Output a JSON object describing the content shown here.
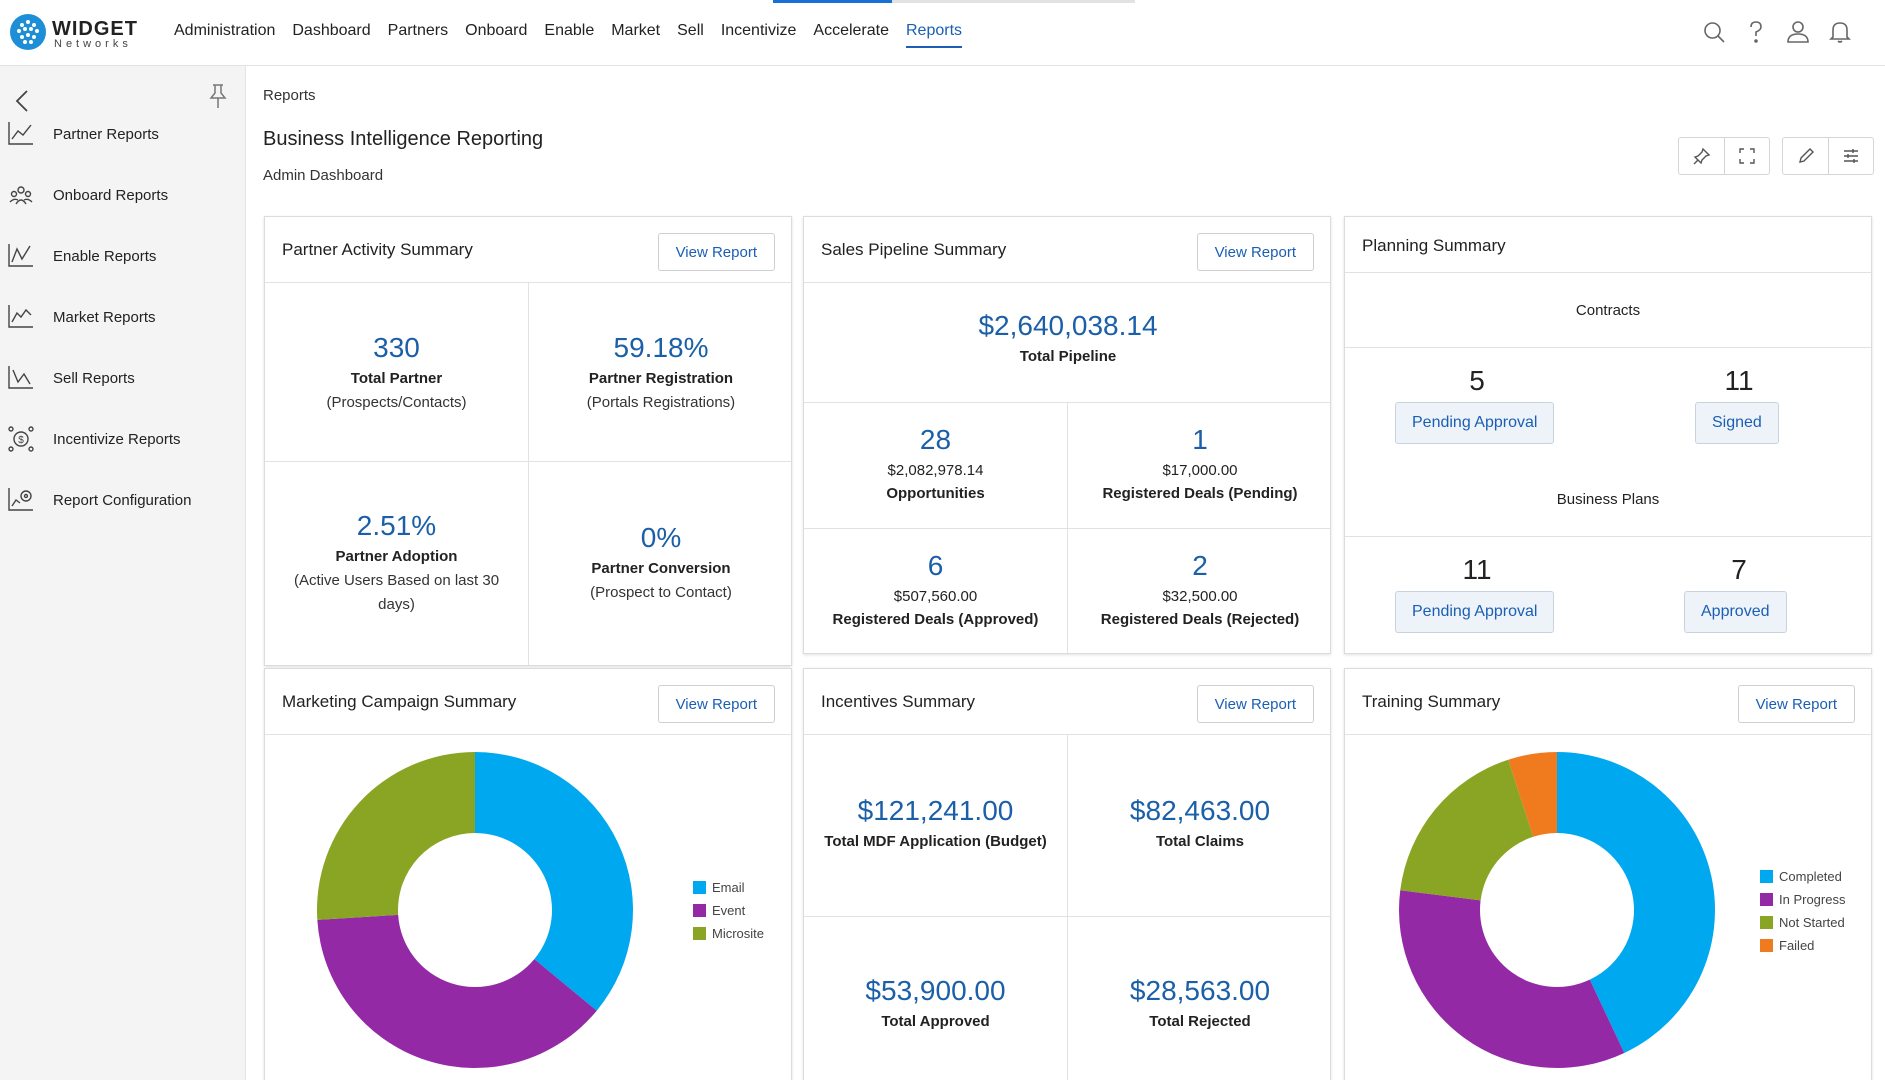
{
  "brand": {
    "name": "WIDGET",
    "sub": "Networks"
  },
  "nav": [
    "Administration",
    "Dashboard",
    "Partners",
    "Onboard",
    "Enable",
    "Market",
    "Sell",
    "Incentivize",
    "Accelerate",
    "Reports"
  ],
  "nav_active": "Reports",
  "top_icons": [
    "search-icon",
    "help-icon",
    "user-icon",
    "bell-icon"
  ],
  "sidebar": {
    "items": [
      {
        "label": "Partner Reports",
        "icon": "chart-line-icon"
      },
      {
        "label": "Onboard Reports",
        "icon": "onboard-icon"
      },
      {
        "label": "Enable Reports",
        "icon": "chart-enable-icon"
      },
      {
        "label": "Market Reports",
        "icon": "chart-market-icon"
      },
      {
        "label": "Sell Reports",
        "icon": "chart-sell-icon"
      },
      {
        "label": "Incentivize Reports",
        "icon": "money-icon"
      },
      {
        "label": "Report Configuration",
        "icon": "chart-config-icon"
      }
    ]
  },
  "breadcrumb": "Reports",
  "page_title": "Business Intelligence Reporting",
  "subtitle": "Admin Dashboard",
  "view_report": "View Report",
  "partner_activity": {
    "title": "Partner Activity Summary",
    "total_partner": {
      "value": "330",
      "label": "Total Partner",
      "sub": "(Prospects/Contacts)"
    },
    "registration": {
      "value": "59.18%",
      "label": "Partner Registration",
      "sub": "(Portals Registrations)"
    },
    "adoption": {
      "value": "2.51%",
      "label": "Partner Adoption",
      "sub": "(Active Users Based on last 30 days)"
    },
    "conversion": {
      "value": "0%",
      "label": "Partner Conversion",
      "sub": "(Prospect to Contact)"
    }
  },
  "sales_pipeline": {
    "title": "Sales Pipeline Summary",
    "total": {
      "value": "$2,640,038.14",
      "label": "Total Pipeline"
    },
    "opportunities": {
      "count": "28",
      "amount": "$2,082,978.14",
      "label": "Opportunities"
    },
    "pending": {
      "count": "1",
      "amount": "$17,000.00",
      "label": "Registered Deals (Pending)"
    },
    "approved": {
      "count": "6",
      "amount": "$507,560.00",
      "label": "Registered Deals (Approved)"
    },
    "rejected": {
      "count": "2",
      "amount": "$32,500.00",
      "label": "Registered Deals (Rejected)"
    }
  },
  "planning": {
    "title": "Planning Summary",
    "contracts_label": "Contracts",
    "contracts_pending": {
      "count": "5",
      "label": "Pending Approval"
    },
    "contracts_signed": {
      "count": "11",
      "label": "Signed"
    },
    "plans_label": "Business Plans",
    "plans_pending": {
      "count": "11",
      "label": "Pending Approval"
    },
    "plans_approved": {
      "count": "7",
      "label": "Approved"
    }
  },
  "marketing": {
    "title": "Marketing Campaign Summary"
  },
  "incentives": {
    "title": "Incentives Summary",
    "mdf": {
      "value": "$121,241.00",
      "label": "Total MDF Application (Budget)"
    },
    "claims": {
      "value": "$82,463.00",
      "label": "Total Claims"
    },
    "approved": {
      "value": "$53,900.00",
      "label": "Total Approved"
    },
    "rejected": {
      "value": "$28,563.00",
      "label": "Total Rejected"
    }
  },
  "training": {
    "title": "Training Summary"
  },
  "chart_data": [
    {
      "type": "pie",
      "title": "Marketing Campaign Summary",
      "categories": [
        "Email",
        "Event",
        "Microsite"
      ],
      "values": [
        36,
        38,
        26
      ],
      "colors": [
        "#00a8f0",
        "#9429a6",
        "#8aa523"
      ]
    },
    {
      "type": "pie",
      "title": "Training Summary",
      "categories": [
        "Completed",
        "In Progress",
        "Not Started",
        "Failed"
      ],
      "values": [
        43,
        34,
        18,
        5
      ],
      "colors": [
        "#00a8f0",
        "#9429a6",
        "#8aa523",
        "#f07a1e"
      ]
    }
  ]
}
